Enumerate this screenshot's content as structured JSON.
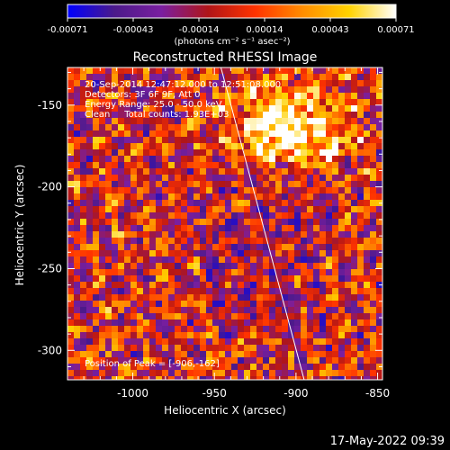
{
  "colorbar": {
    "tick_labels": [
      "-0.00071",
      "-0.00043",
      "-0.00014",
      "0.00014",
      "0.00043",
      "0.00071"
    ],
    "units": "(photons cm⁻² s⁻¹ asec⁻²)",
    "colors": [
      "#0000ff",
      "#4b1a8a",
      "#7a1fa0",
      "#b01518",
      "#ff3300",
      "#ff8c00",
      "#ffd200",
      "#ffffff"
    ]
  },
  "title": "Reconstructed RHESSI Image",
  "info_lines": [
    "20-Sep-2014 12:47:12.000 to 12:51:08.000",
    "Detectors: 3F 6F 9F, Att 0",
    "Energy Range: 25.0 - 50.0 keV",
    "Clean     Total counts: 1.93E+03"
  ],
  "peak_label": "Position of Peak = [-906,-162]",
  "timestamp": "17-May-2022 09:39",
  "chart_data": {
    "type": "heatmap",
    "title": "Reconstructed RHESSI Image",
    "xlabel": "Heliocentric X (arcsec)",
    "ylabel": "Heliocentric Y (arcsec)",
    "xlim": [
      -1040,
      -847
    ],
    "ylim": [
      -318,
      -127
    ],
    "x_ticks": [
      -1000,
      -950,
      -900,
      -850
    ],
    "y_ticks": [
      -300,
      -250,
      -200,
      -150
    ],
    "x_tick_labels": [
      "-1000",
      "-950",
      "-900",
      "-850"
    ],
    "y_tick_labels": [
      "-300",
      "-250",
      "-200",
      "-150"
    ],
    "value_range": [
      -0.00071,
      0.00071
    ],
    "limb_line": [
      [
        -946,
        -127
      ],
      [
        -895,
        -318
      ]
    ],
    "peak": [
      -906,
      -162
    ]
  }
}
